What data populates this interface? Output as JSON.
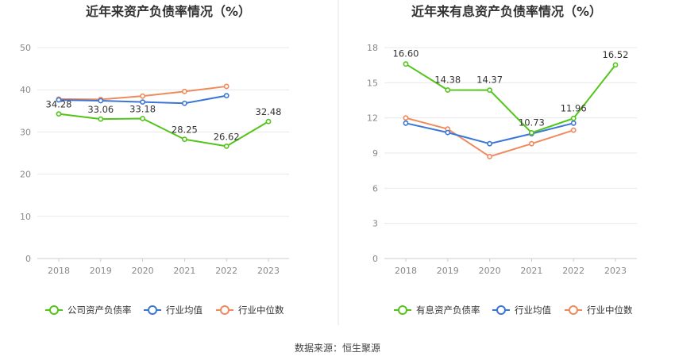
{
  "source_text": "数据来源：恒生聚源",
  "colors": {
    "company": "#52c41a",
    "industry_avg": "#3a76d6",
    "industry_median": "#f08a5d",
    "grid": "#e8e8e8",
    "axis": "#cccccc",
    "divider": "#e6e6e6"
  },
  "legend_icons": {
    "company": "circle-line-marker",
    "industry_avg": "circle-line-marker",
    "industry_median": "circle-line-marker"
  },
  "chart_data": [
    {
      "type": "line",
      "title": "近年来资产负债率情况（%）",
      "categories": [
        "2018",
        "2019",
        "2020",
        "2021",
        "2022",
        "2023"
      ],
      "ylim": [
        0,
        50
      ],
      "yticks": [
        0,
        10,
        20,
        30,
        40,
        50
      ],
      "grid": true,
      "legend_position": "bottom",
      "series": [
        {
          "key": "company",
          "name": "公司资产负债率",
          "values": [
            34.28,
            33.06,
            33.18,
            28.25,
            26.62,
            32.48
          ],
          "labels": [
            "34.28",
            "33.06",
            "33.18",
            "28.25",
            "26.62",
            "32.48"
          ]
        },
        {
          "key": "industry_avg",
          "name": "行业均值",
          "values": [
            37.6,
            37.4,
            37.1,
            36.8,
            38.6,
            null
          ]
        },
        {
          "key": "industry_median",
          "name": "行业中位数",
          "values": [
            37.8,
            37.7,
            38.5,
            39.6,
            40.8,
            null
          ]
        }
      ]
    },
    {
      "type": "line",
      "title": "近年来有息资产负债率情况（%）",
      "categories": [
        "2018",
        "2019",
        "2020",
        "2021",
        "2022",
        "2023"
      ],
      "ylim": [
        0,
        18
      ],
      "yticks": [
        0,
        3,
        6,
        9,
        12,
        15,
        18
      ],
      "grid": true,
      "legend_position": "bottom",
      "series": [
        {
          "key": "company",
          "name": "有息资产负债率",
          "values": [
            16.6,
            14.38,
            14.37,
            10.73,
            11.96,
            16.52
          ],
          "labels": [
            "16.60",
            "14.38",
            "14.37",
            "10.73",
            "11.96",
            "16.52"
          ]
        },
        {
          "key": "industry_avg",
          "name": "行业均值",
          "values": [
            11.55,
            10.75,
            9.8,
            10.65,
            11.55,
            null
          ]
        },
        {
          "key": "industry_median",
          "name": "行业中位数",
          "values": [
            12.0,
            11.05,
            8.7,
            9.8,
            10.95,
            null
          ]
        }
      ]
    }
  ]
}
